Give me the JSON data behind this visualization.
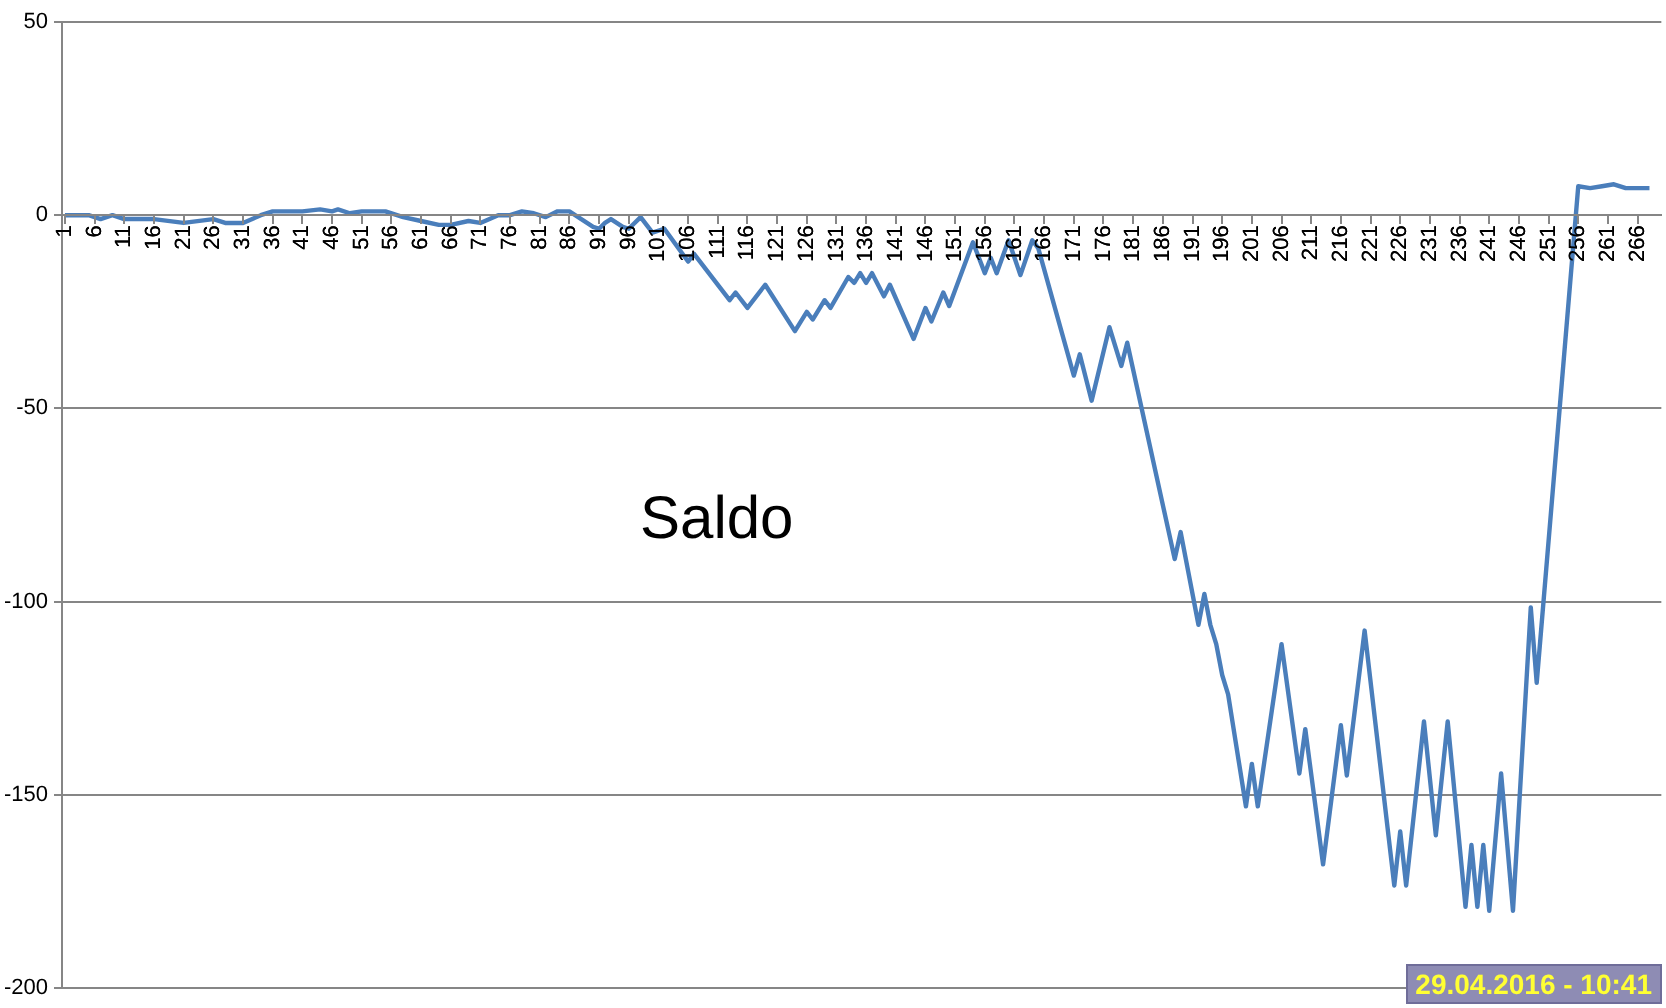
{
  "chart_data": {
    "type": "line",
    "annotations": [
      "Saldo",
      "29.04.2016 - 10:41"
    ],
    "xlim": [
      0.5,
      270
    ],
    "xticks": [
      1,
      6,
      11,
      16,
      21,
      26,
      31,
      36,
      41,
      46,
      51,
      56,
      61,
      66,
      71,
      76,
      81,
      86,
      91,
      96,
      101,
      106,
      111,
      116,
      121,
      126,
      131,
      136,
      141,
      146,
      151,
      156,
      161,
      166,
      171,
      176,
      181,
      186,
      191,
      196,
      201,
      206,
      211,
      216,
      221,
      226,
      231,
      236,
      241,
      246,
      251,
      256,
      261,
      266
    ],
    "ylim": [
      -200,
      50
    ],
    "yticks": [
      -200,
      -150,
      -100,
      -50,
      0,
      50
    ],
    "grid": "y",
    "legend": false,
    "marker": "none",
    "line_style": "solid",
    "series": [
      {
        "color": "#4a7ebb",
        "x": [
          1,
          5,
          7,
          9,
          11,
          16,
          21,
          26,
          28,
          31,
          34,
          36,
          41,
          44,
          46,
          47,
          49,
          51,
          55,
          58,
          61,
          64,
          66,
          69,
          71,
          74,
          76,
          78,
          80,
          82,
          84,
          86,
          88,
          90,
          91,
          92,
          93,
          95,
          96,
          98,
          100,
          102,
          106,
          107,
          113,
          114,
          116,
          119,
          124,
          126,
          127,
          129,
          130,
          133,
          134,
          135,
          136,
          137,
          139,
          140,
          144,
          146,
          147,
          149,
          150,
          154,
          156,
          157,
          158,
          160,
          162,
          164,
          165,
          171,
          172,
          174,
          177,
          179,
          180,
          188,
          189,
          192,
          193,
          194,
          195,
          196,
          197,
          200,
          201,
          202,
          206,
          209,
          210,
          213,
          216,
          217,
          220,
          225,
          226,
          227,
          230,
          232,
          234,
          237,
          238,
          239,
          240,
          241,
          243,
          245,
          248,
          249,
          256,
          258,
          260,
          262,
          264,
          266,
          268
        ],
        "values": [
          0,
          0,
          -1,
          0,
          -1,
          -1,
          -2,
          -1,
          -2,
          -2,
          0,
          1,
          1,
          1.5,
          1,
          1.5,
          0.5,
          1,
          1,
          -0.5,
          -1.5,
          -2.5,
          -2.5,
          -1.5,
          -2,
          0,
          0,
          1,
          0.5,
          -0.5,
          1,
          1,
          -1,
          -3,
          -3.5,
          -2,
          -1,
          -3,
          -3.5,
          -0.5,
          -4.5,
          -3.5,
          -12,
          -10,
          -22,
          -20,
          -24,
          -18,
          -30,
          -25,
          -27,
          -22,
          -24,
          -16,
          -17.5,
          -15,
          -17.5,
          -15,
          -21,
          -18,
          -32,
          -24,
          -27.5,
          -20,
          -23.5,
          -7,
          -15,
          -11,
          -15,
          -6.5,
          -15.5,
          -6.5,
          -8.5,
          -41.5,
          -36,
          -48,
          -29,
          -39,
          -33,
          -89,
          -82,
          -106,
          -98,
          -106,
          -111,
          -119,
          -124,
          -153,
          -142,
          -153,
          -111,
          -144.5,
          -133,
          -168,
          -132,
          -145,
          -107.5,
          -173.5,
          -159.5,
          -173.5,
          -131,
          -160.5,
          -131,
          -179,
          -163,
          -179,
          -163,
          -180,
          -144.5,
          -180,
          -101.5,
          -121,
          7.5,
          7,
          7.5,
          8,
          7,
          7,
          7
        ]
      }
    ]
  }
}
